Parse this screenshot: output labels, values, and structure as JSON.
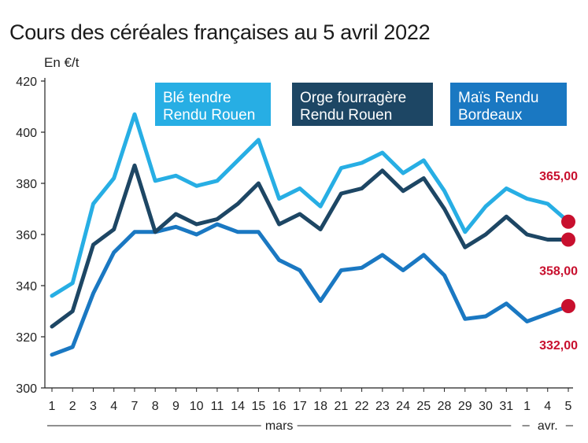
{
  "title": "Cours des céréales françaises au 5 avril 2022",
  "unit": "En €/t",
  "chart_data": {
    "type": "line",
    "title": "Cours des céréales françaises au 5 avril 2022",
    "ylabel": "En €/t",
    "ylim": [
      300,
      420
    ],
    "yticks": [
      300,
      320,
      340,
      360,
      380,
      400,
      420
    ],
    "grid": false,
    "x": [
      "1",
      "2",
      "3",
      "4",
      "7",
      "8",
      "9",
      "10",
      "11",
      "14",
      "15",
      "16",
      "17",
      "18",
      "21",
      "22",
      "23",
      "24",
      "25",
      "28",
      "29",
      "30",
      "31",
      "1",
      "4",
      "5"
    ],
    "month_labels": [
      {
        "label": "mars",
        "from": 0,
        "to": 22
      },
      {
        "label": "avr.",
        "from": 23,
        "to": 25
      }
    ],
    "series": [
      {
        "name": "Blé tendre Rendu Rouen",
        "color": "#27aee4",
        "values": [
          336,
          341,
          372,
          382,
          407,
          381,
          383,
          379,
          381,
          389,
          397,
          374,
          378,
          371,
          386,
          388,
          392,
          384,
          389,
          377,
          361,
          371,
          378,
          374,
          372,
          365
        ],
        "end_label": "365,00"
      },
      {
        "name": "Orge fourragère Rendu Rouen",
        "color": "#1d4664",
        "values": [
          324,
          330,
          356,
          362,
          387,
          361,
          368,
          364,
          366,
          372,
          380,
          364,
          368,
          362,
          376,
          378,
          385,
          377,
          382,
          370,
          355,
          360,
          367,
          360,
          358,
          358
        ],
        "end_label": "358,00"
      },
      {
        "name": "Maïs Rendu Bordeaux",
        "color": "#1a78c2",
        "values": [
          313,
          316,
          337,
          353,
          361,
          361,
          363,
          360,
          364,
          361,
          361,
          350,
          346,
          334,
          346,
          347,
          352,
          346,
          352,
          344,
          327,
          328,
          333,
          326,
          329,
          332
        ],
        "end_label": "332,00"
      }
    ],
    "marker_color": "#c8102e"
  }
}
